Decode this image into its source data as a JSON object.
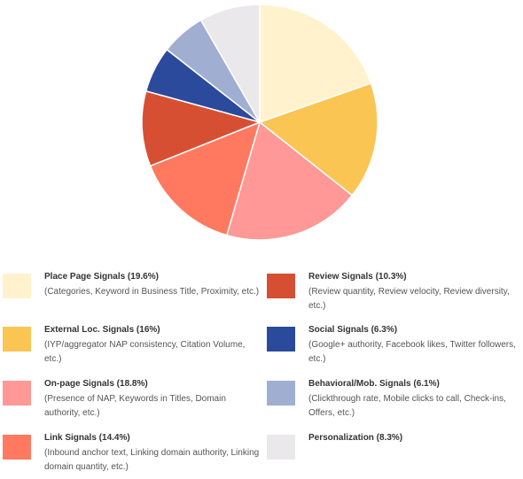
{
  "chart_data": {
    "type": "pie",
    "slices": [
      {
        "label": "Place Page Signals",
        "value": 19.6,
        "color": "#FFF2CC"
      },
      {
        "label": "External Loc. Signals",
        "value": 16,
        "color": "#FAC553"
      },
      {
        "label": "On-page Signals",
        "value": 18.8,
        "color": "#FF9896"
      },
      {
        "label": "Link Signals",
        "value": 14.4,
        "color": "#FF7961"
      },
      {
        "label": "Review Signals",
        "value": 10.3,
        "color": "#D74F33"
      },
      {
        "label": "Social Signals",
        "value": 6.3,
        "color": "#2C4A9C"
      },
      {
        "label": "Behavioral/Mob. Signals",
        "value": 6.1,
        "color": "#A0AED2"
      },
      {
        "label": "Personalization",
        "value": 8.3,
        "color": "#EBE8EB"
      }
    ]
  },
  "legend": [
    {
      "title": "Place Page Signals (19.6%)",
      "desc": "(Categories, Keyword in Business Title, Proximity, etc.)"
    },
    {
      "title": "External Loc. Signals (16%)",
      "desc": "(IYP/aggregator NAP consistency, Citation Volume, etc.)"
    },
    {
      "title": "On-page Signals (18.8%)",
      "desc": "(Presence of NAP, Keywords in Titles, Domain authority, etc.)"
    },
    {
      "title": "Link Signals (14.4%)",
      "desc": "(Inbound anchor text, Linking domain authority, Linking domain quantity, etc.)"
    },
    {
      "title": "Review Signals (10.3%)",
      "desc": "(Review quantity, Review velocity, Review diversity, etc.)"
    },
    {
      "title": "Social Signals (6.3%)",
      "desc": "(Google+ authority, Facebook likes, Twitter followers, etc.)"
    },
    {
      "title": "Behavioral/Mob. Signals (6.1%)",
      "desc": "(Clickthrough rate, Mobile clicks to call, Check-ins, Offers, etc.)"
    },
    {
      "title": "Personalization (8.3%)",
      "desc": ""
    }
  ]
}
